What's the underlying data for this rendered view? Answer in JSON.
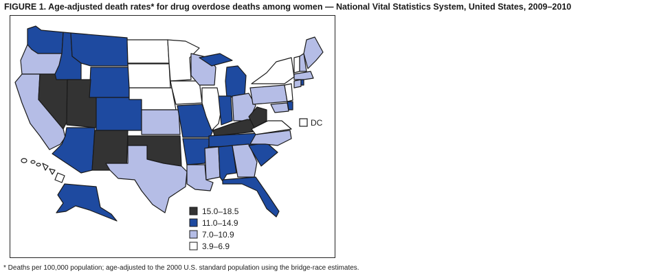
{
  "title": "FIGURE 1. Age-adjusted death rates* for drug overdose deaths among women — National Vital Statistics System, United States, 2009–2010",
  "footnote": "* Deaths per 100,000 population; age-adjusted to the 2000 U.S. standard population using the bridge-race estimates.",
  "colors": {
    "darkest": "#333333",
    "dark_blue": "#1e4aa0",
    "light_blue": "#b5bde6",
    "white": "#ffffff",
    "border": "#1a1a1a"
  },
  "legend": [
    {
      "label": "15.0–18.5",
      "class": "darkest"
    },
    {
      "label": "11.0–14.9",
      "class": "dark_blue"
    },
    {
      "label": "7.0–10.9",
      "class": "light_blue"
    },
    {
      "label": "3.9–6.9",
      "class": "white"
    }
  ],
  "dc_label": "DC",
  "states": [
    {
      "abbr": "WA",
      "class": "dark_blue"
    },
    {
      "abbr": "OR",
      "class": "light_blue"
    },
    {
      "abbr": "CA",
      "class": "light_blue"
    },
    {
      "abbr": "NV",
      "class": "darkest"
    },
    {
      "abbr": "ID",
      "class": "dark_blue"
    },
    {
      "abbr": "MT",
      "class": "dark_blue"
    },
    {
      "abbr": "WY",
      "class": "dark_blue"
    },
    {
      "abbr": "UT",
      "class": "darkest"
    },
    {
      "abbr": "AZ",
      "class": "dark_blue"
    },
    {
      "abbr": "CO",
      "class": "dark_blue"
    },
    {
      "abbr": "NM",
      "class": "darkest"
    },
    {
      "abbr": "ND",
      "class": "white"
    },
    {
      "abbr": "SD",
      "class": "white"
    },
    {
      "abbr": "NE",
      "class": "white"
    },
    {
      "abbr": "KS",
      "class": "light_blue"
    },
    {
      "abbr": "OK",
      "class": "darkest"
    },
    {
      "abbr": "TX",
      "class": "light_blue"
    },
    {
      "abbr": "MN",
      "class": "white"
    },
    {
      "abbr": "IA",
      "class": "white"
    },
    {
      "abbr": "MO",
      "class": "dark_blue"
    },
    {
      "abbr": "AR",
      "class": "dark_blue"
    },
    {
      "abbr": "LA",
      "class": "light_blue"
    },
    {
      "abbr": "WI",
      "class": "light_blue"
    },
    {
      "abbr": "IL",
      "class": "white"
    },
    {
      "abbr": "MI",
      "class": "dark_blue"
    },
    {
      "abbr": "IN",
      "class": "dark_blue"
    },
    {
      "abbr": "OH",
      "class": "light_blue"
    },
    {
      "abbr": "KY",
      "class": "darkest"
    },
    {
      "abbr": "TN",
      "class": "dark_blue"
    },
    {
      "abbr": "MS",
      "class": "light_blue"
    },
    {
      "abbr": "AL",
      "class": "dark_blue"
    },
    {
      "abbr": "GA",
      "class": "light_blue"
    },
    {
      "abbr": "FL",
      "class": "dark_blue"
    },
    {
      "abbr": "SC",
      "class": "dark_blue"
    },
    {
      "abbr": "NC",
      "class": "light_blue"
    },
    {
      "abbr": "VA",
      "class": "white"
    },
    {
      "abbr": "WV",
      "class": "darkest"
    },
    {
      "abbr": "PA",
      "class": "light_blue"
    },
    {
      "abbr": "NY",
      "class": "white"
    },
    {
      "abbr": "NJ",
      "class": "white"
    },
    {
      "abbr": "DE",
      "class": "dark_blue"
    },
    {
      "abbr": "MD",
      "class": "light_blue"
    },
    {
      "abbr": "CT",
      "class": "light_blue"
    },
    {
      "abbr": "RI",
      "class": "dark_blue"
    },
    {
      "abbr": "MA",
      "class": "light_blue"
    },
    {
      "abbr": "VT",
      "class": "white"
    },
    {
      "abbr": "NH",
      "class": "light_blue"
    },
    {
      "abbr": "ME",
      "class": "light_blue"
    },
    {
      "abbr": "AK",
      "class": "dark_blue"
    },
    {
      "abbr": "HI",
      "class": "white"
    },
    {
      "abbr": "DC",
      "class": "white"
    }
  ]
}
